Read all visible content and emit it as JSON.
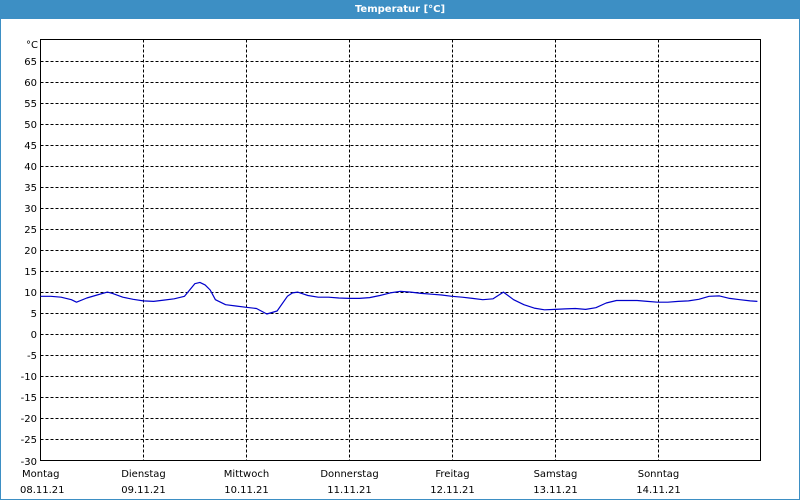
{
  "window": {
    "title": "Temperatur [°C]"
  },
  "chart_data": {
    "type": "line",
    "title": "Temperatur [°C]",
    "ylabel": "°C",
    "xlabel": "",
    "ylim": [
      -30,
      70
    ],
    "yticks": [
      65,
      60,
      55,
      50,
      45,
      40,
      35,
      30,
      25,
      20,
      15,
      10,
      5,
      0,
      -5,
      -10,
      -15,
      -20,
      -25,
      -30
    ],
    "grid": true,
    "days": [
      {
        "weekday": "Montag",
        "date": "08.11.21"
      },
      {
        "weekday": "Dienstag",
        "date": "09.11.21"
      },
      {
        "weekday": "Mittwoch",
        "date": "10.11.21"
      },
      {
        "weekday": "Donnerstag",
        "date": "11.11.21"
      },
      {
        "weekday": "Freitag",
        "date": "12.11.21"
      },
      {
        "weekday": "Samstag",
        "date": "13.11.21"
      },
      {
        "weekday": "Sonntag",
        "date": "14.11.21"
      }
    ],
    "x_unit": "days from 08.11.21 00:00",
    "x_range": [
      0,
      7
    ],
    "series": [
      {
        "color": "#0000cc",
        "x": [
          0,
          0.1,
          0.2,
          0.3,
          0.35,
          0.45,
          0.55,
          0.65,
          0.7,
          0.8,
          0.9,
          1.0,
          1.1,
          1.2,
          1.3,
          1.4,
          1.5,
          1.55,
          1.6,
          1.65,
          1.7,
          1.8,
          1.9,
          2.0,
          2.1,
          2.2,
          2.3,
          2.4,
          2.45,
          2.5,
          2.55,
          2.6,
          2.7,
          2.8,
          2.9,
          3.0,
          3.1,
          3.2,
          3.3,
          3.4,
          3.5,
          3.6,
          3.7,
          3.8,
          3.9,
          4.0,
          4.1,
          4.2,
          4.3,
          4.4,
          4.5,
          4.6,
          4.7,
          4.8,
          4.9,
          5.0,
          5.1,
          5.2,
          5.3,
          5.4,
          5.5,
          5.6,
          5.7,
          5.8,
          5.9,
          6.0,
          6.1,
          6.2,
          6.3,
          6.4,
          6.5,
          6.6,
          6.7,
          6.8,
          6.9,
          6.97
        ],
        "y": [
          9,
          9,
          8.8,
          8.2,
          7.6,
          8.6,
          9.3,
          10,
          9.7,
          8.8,
          8.3,
          7.9,
          7.8,
          8.1,
          8.4,
          9,
          12,
          12.3,
          11.7,
          10.5,
          8.2,
          7,
          6.7,
          6.4,
          6.1,
          4.8,
          5.5,
          9,
          9.8,
          10,
          9.6,
          9.2,
          8.8,
          8.8,
          8.6,
          8.5,
          8.5,
          8.7,
          9.2,
          9.8,
          10.2,
          10,
          9.7,
          9.5,
          9.3,
          9,
          8.8,
          8.5,
          8.2,
          8.4,
          10,
          8.2,
          7.0,
          6.2,
          5.8,
          5.9,
          6.0,
          6.1,
          5.9,
          6.3,
          7.4,
          8.0,
          8.0,
          8.0,
          7.8,
          7.6,
          7.6,
          7.8,
          7.9,
          8.3,
          9.0,
          9.1,
          8.5,
          8.2,
          7.9,
          7.8
        ]
      }
    ]
  }
}
